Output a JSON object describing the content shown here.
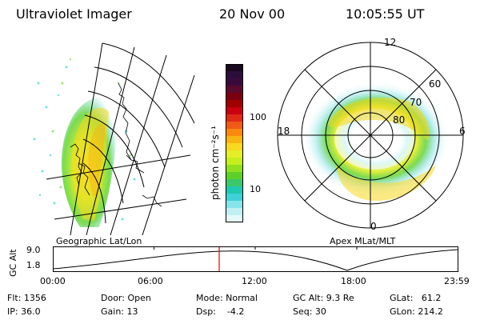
{
  "header": {
    "title": "Ultraviolet Imager",
    "date": "20 Nov 00",
    "time": "10:05:55 UT"
  },
  "left_panel": {
    "caption": "Geographic Lat/Lon"
  },
  "right_panel": {
    "caption": "Apex MLat/MLT",
    "mlt_labels": {
      "top": "12",
      "left": "18",
      "right": "6",
      "bottom": "0"
    },
    "lat_labels": [
      "60",
      "70",
      "80"
    ]
  },
  "colorbar": {
    "unit_label": "photon cm⁻²s⁻¹",
    "ticks": [
      "100",
      "10"
    ],
    "colors": [
      "#1a0820",
      "#2c0e3a",
      "#3a0a3c",
      "#5a0a2c",
      "#7a0010",
      "#a00000",
      "#c80010",
      "#e02a18",
      "#f05a18",
      "#f88a10",
      "#f8b410",
      "#f8d820",
      "#e6ee28",
      "#c4ee1c",
      "#90e020",
      "#5cd028",
      "#3cc86a",
      "#20c8b0",
      "#40d0d8",
      "#88e4ec",
      "#c0f0f4",
      "#e6f8fa"
    ]
  },
  "altitude_plot": {
    "ylabel": "GC Alt",
    "ytick_top": "9.0",
    "ytick_bottom": "1.8",
    "xticks": [
      "00:00",
      "06:00",
      "12:00",
      "18:00",
      "23:59"
    ],
    "marker_color": "#e00000"
  },
  "info": {
    "flt": "Flt: 1356",
    "ip": "IP: 36.0",
    "door": "Door: Open",
    "gain": "Gain: 13",
    "mode": "Mode: Normal",
    "dsp": "Dsp:    -4.2",
    "gc_alt": "GC Alt: 9.3 Re",
    "seq": "Seq: 30",
    "glat": "GLat:   61.2",
    "glon": "GLon: 214.2"
  }
}
